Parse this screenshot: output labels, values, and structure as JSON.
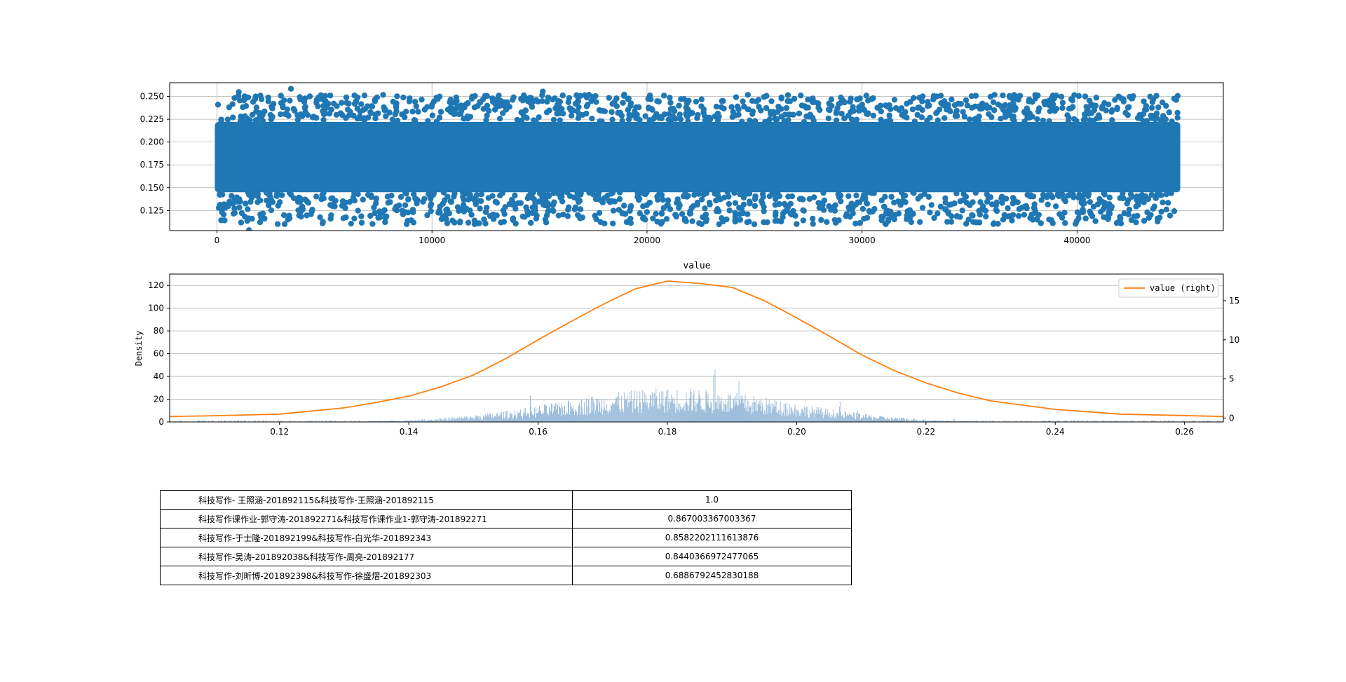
{
  "colors": {
    "scatter": "#1f77b4",
    "kde": "#ff7f0e",
    "hist": "#8fb4d6",
    "grid": "#b0b0b0"
  },
  "chart_data": [
    {
      "type": "scatter",
      "title": "",
      "xlabel": "",
      "ylabel": "",
      "xlim": [
        -2200,
        46800
      ],
      "ylim": [
        0.103,
        0.265
      ],
      "xticks": [
        "0",
        "10000",
        "20000",
        "30000",
        "40000"
      ],
      "yticks": [
        "0.125",
        "0.150",
        "0.175",
        "0.200",
        "0.225",
        "0.250"
      ],
      "grid": true,
      "n_points": 44700,
      "x_range": [
        0,
        44700
      ],
      "y_mean": 0.18,
      "y_std": 0.02,
      "dense_band": [
        0.145,
        0.222
      ]
    },
    {
      "type": "histogram+line",
      "title": "value",
      "xlabel": "",
      "ylabel": "Density",
      "xlim": [
        0.103,
        0.266
      ],
      "ylim_left": [
        0,
        130
      ],
      "ylim_right": [
        -0.5,
        18.4
      ],
      "xticks": [
        "0.12",
        "0.14",
        "0.16",
        "0.18",
        "0.20",
        "0.22",
        "0.24",
        "0.26"
      ],
      "yticks_left": [
        "0",
        "20",
        "40",
        "60",
        "80",
        "100",
        "120"
      ],
      "yticks_right": [
        "0",
        "5",
        "10",
        "15"
      ],
      "grid": true,
      "legend": {
        "position": "top-right",
        "entries": [
          "value (right)"
        ]
      },
      "series": [
        {
          "name": "value (right)",
          "kind": "kde",
          "x": [
            0.103,
            0.11,
            0.12,
            0.13,
            0.135,
            0.14,
            0.145,
            0.15,
            0.155,
            0.16,
            0.165,
            0.17,
            0.175,
            0.18,
            0.185,
            0.19,
            0.195,
            0.2,
            0.205,
            0.21,
            0.215,
            0.22,
            0.225,
            0.23,
            0.24,
            0.25,
            0.266
          ],
          "values": [
            0.2,
            0.3,
            0.5,
            1.3,
            2.0,
            2.8,
            4.0,
            5.5,
            7.6,
            10.0,
            12.3,
            14.5,
            16.5,
            17.5,
            17.2,
            16.7,
            15.0,
            12.8,
            10.5,
            8.1,
            6.1,
            4.5,
            3.2,
            2.2,
            1.1,
            0.5,
            0.2
          ]
        },
        {
          "name": "",
          "kind": "histogram",
          "bin_range": [
            0.103,
            0.266
          ],
          "peak": 48,
          "mean": 0.181,
          "std": 0.0175
        }
      ]
    }
  ],
  "table": {
    "rows": [
      {
        "label": "科技写作- 王照涵-201892115&科技写作-王照涵-201892115",
        "value": "1.0"
      },
      {
        "label": "科技写作课作业-郭守涛-201892271&科技写作课作业1-郭守涛-201892271",
        "value": "0.867003367003367"
      },
      {
        "label": "科技写作-于士隆-201892199&科技写作-白光华-201892343",
        "value": "0.8582202111613876"
      },
      {
        "label": "科技写作-吴涛-201892038&科技写作-周亮-201892177",
        "value": "0.8440366972477065"
      },
      {
        "label": "科技写作-刘昕博-201892398&科技写作-徐盛熠-201892303",
        "value": "0.6886792452830188"
      }
    ]
  }
}
